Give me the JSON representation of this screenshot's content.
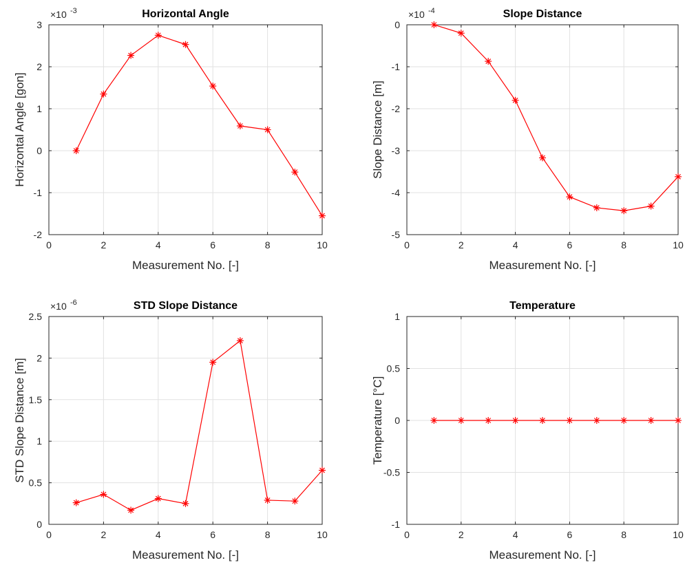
{
  "chart_data": [
    {
      "type": "line",
      "title": "Horizontal Angle",
      "xlabel": "Measurement No. [-]",
      "ylabel": "Horizontal Angle [gon]",
      "exponent_label": "×10",
      "exponent_power": "-3",
      "xlim": [
        0,
        10
      ],
      "ylim": [
        -2,
        3
      ],
      "xticks": [
        "0",
        "2",
        "4",
        "6",
        "8",
        "10"
      ],
      "yticks": [
        "-2",
        "-1",
        "0",
        "1",
        "2",
        "3"
      ],
      "grid": true,
      "color": "#ff0000",
      "marker": "asterisk",
      "x": [
        1,
        2,
        3,
        4,
        5,
        6,
        7,
        8,
        9,
        10
      ],
      "y": [
        0,
        1.35,
        2.27,
        2.75,
        2.53,
        1.54,
        0.59,
        0.5,
        -0.51,
        -1.55
      ]
    },
    {
      "type": "line",
      "title": "Slope Distance",
      "xlabel": "Measurement No. [-]",
      "ylabel": "Slope Distance [m]",
      "exponent_label": "×10",
      "exponent_power": "-4",
      "xlim": [
        0,
        10
      ],
      "ylim": [
        -5,
        0
      ],
      "xticks": [
        "0",
        "2",
        "4",
        "6",
        "8",
        "10"
      ],
      "yticks": [
        "-5",
        "-4",
        "-3",
        "-2",
        "-1",
        "0"
      ],
      "grid": true,
      "color": "#ff0000",
      "marker": "asterisk",
      "x": [
        1,
        2,
        3,
        4,
        5,
        6,
        7,
        8,
        9,
        10
      ],
      "y": [
        0,
        -0.2,
        -0.87,
        -1.8,
        -3.17,
        -4.1,
        -4.36,
        -4.43,
        -4.32,
        -3.62
      ]
    },
    {
      "type": "line",
      "title": "STD Slope Distance",
      "xlabel": "Measurement No. [-]",
      "ylabel": "STD Slope Distance [m]",
      "exponent_label": "×10",
      "exponent_power": "-6",
      "xlim": [
        0,
        10
      ],
      "ylim": [
        0,
        2.5
      ],
      "xticks": [
        "0",
        "2",
        "4",
        "6",
        "8",
        "10"
      ],
      "yticks": [
        "0",
        "0.5",
        "1",
        "1.5",
        "2",
        "2.5"
      ],
      "grid": true,
      "color": "#ff0000",
      "marker": "asterisk",
      "x": [
        1,
        2,
        3,
        4,
        5,
        6,
        7,
        8,
        9,
        10
      ],
      "y": [
        0.26,
        0.36,
        0.17,
        0.31,
        0.25,
        1.95,
        2.21,
        0.29,
        0.28,
        0.65
      ]
    },
    {
      "type": "line",
      "title": "Temperature",
      "xlabel": "Measurement No. [-]",
      "ylabel": "Temperature [°C]",
      "exponent_label": "",
      "exponent_power": "",
      "xlim": [
        0,
        10
      ],
      "ylim": [
        -1,
        1
      ],
      "xticks": [
        "0",
        "2",
        "4",
        "6",
        "8",
        "10"
      ],
      "yticks": [
        "-1",
        "-0.5",
        "0",
        "0.5",
        "1"
      ],
      "grid": true,
      "color": "#ff0000",
      "marker": "asterisk",
      "x": [
        1,
        2,
        3,
        4,
        5,
        6,
        7,
        8,
        9,
        10
      ],
      "y": [
        0,
        0,
        0,
        0,
        0,
        0,
        0,
        0,
        0,
        0
      ]
    }
  ]
}
